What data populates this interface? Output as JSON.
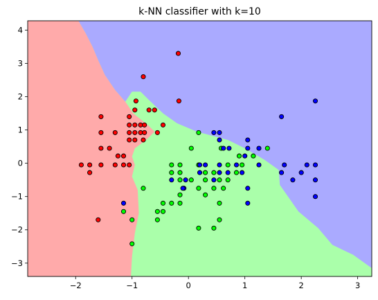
{
  "chart_data": {
    "type": "scatter",
    "title": "k-NN classifier with k=10",
    "xlabel": "",
    "ylabel": "",
    "xlim": [
      -2.85,
      3.25
    ],
    "ylim": [
      -3.4,
      4.28
    ],
    "xticks": [
      -2,
      -1,
      0,
      1,
      2,
      3
    ],
    "yticks": [
      -3,
      -2,
      -1,
      0,
      1,
      2,
      3,
      4
    ],
    "grid": false,
    "regions": [
      {
        "class": "red",
        "color": "#ffaaaa",
        "polygon": [
          [
            -2.85,
            4.28
          ],
          [
            -1.95,
            4.28
          ],
          [
            -1.82,
            3.9
          ],
          [
            -1.7,
            3.5
          ],
          [
            -1.6,
            3.1
          ],
          [
            -1.48,
            2.65
          ],
          [
            -1.3,
            2.2
          ],
          [
            -1.12,
            1.85
          ],
          [
            -0.98,
            1.5
          ],
          [
            -0.72,
            1.15
          ],
          [
            -0.6,
            0.95
          ],
          [
            -0.75,
            0.7
          ],
          [
            -0.95,
            0.45
          ],
          [
            -1.0,
            0.2
          ],
          [
            -0.95,
            -0.05
          ],
          [
            -1.0,
            -0.4
          ],
          [
            -0.9,
            -0.8
          ],
          [
            -0.88,
            -1.5
          ],
          [
            -0.95,
            -2.1
          ],
          [
            -1.0,
            -2.8
          ],
          [
            -1.02,
            -3.4
          ],
          [
            -2.85,
            -3.4
          ]
        ]
      },
      {
        "class": "blue",
        "color": "#aaaaff",
        "polygon": [
          [
            -1.95,
            4.28
          ],
          [
            3.25,
            4.28
          ],
          [
            3.25,
            -3.15
          ],
          [
            2.92,
            -2.75
          ],
          [
            2.55,
            -2.45
          ],
          [
            2.3,
            -1.95
          ],
          [
            1.95,
            -1.45
          ],
          [
            1.62,
            -0.65
          ],
          [
            1.6,
            -0.2
          ],
          [
            1.35,
            0.1
          ],
          [
            1.0,
            0.45
          ],
          [
            0.7,
            0.7
          ],
          [
            0.15,
            0.95
          ],
          [
            -0.2,
            1.2
          ],
          [
            -0.45,
            1.5
          ],
          [
            -0.7,
            1.9
          ],
          [
            -0.85,
            2.15
          ],
          [
            -1.0,
            2.15
          ],
          [
            -1.12,
            1.85
          ],
          [
            -1.3,
            2.2
          ],
          [
            -1.48,
            2.65
          ],
          [
            -1.6,
            3.1
          ],
          [
            -1.7,
            3.5
          ],
          [
            -1.82,
            3.9
          ]
        ]
      }
    ],
    "background_region": {
      "class": "green",
      "color": "#aaffaa"
    },
    "series": [
      {
        "color": "#ff0000",
        "points": [
          [
            -0.18,
            3.3
          ],
          [
            -0.8,
            2.6
          ],
          [
            -0.93,
            1.87
          ],
          [
            -0.17,
            1.87
          ],
          [
            -1.55,
            1.4
          ],
          [
            -1.05,
            1.4
          ],
          [
            -0.95,
            1.6
          ],
          [
            -0.7,
            1.6
          ],
          [
            -0.6,
            1.6
          ],
          [
            -1.55,
            0.92
          ],
          [
            -1.3,
            0.92
          ],
          [
            -1.05,
            1.15
          ],
          [
            -0.95,
            1.15
          ],
          [
            -0.85,
            1.15
          ],
          [
            -0.78,
            1.15
          ],
          [
            -1.05,
            0.92
          ],
          [
            -0.95,
            0.92
          ],
          [
            -0.85,
            0.92
          ],
          [
            -0.78,
            0.92
          ],
          [
            -0.55,
            0.92
          ],
          [
            -0.45,
            1.15
          ],
          [
            -1.05,
            0.7
          ],
          [
            -0.95,
            0.7
          ],
          [
            -0.8,
            0.7
          ],
          [
            -1.55,
            0.45
          ],
          [
            -1.4,
            0.45
          ],
          [
            -1.25,
            0.22
          ],
          [
            -1.15,
            0.22
          ],
          [
            -1.9,
            -0.05
          ],
          [
            -1.75,
            -0.05
          ],
          [
            -1.55,
            -0.05
          ],
          [
            -1.3,
            -0.05
          ],
          [
            -1.15,
            -0.05
          ],
          [
            -1.05,
            -0.05
          ],
          [
            -1.75,
            -0.28
          ],
          [
            -1.6,
            -1.7
          ]
        ]
      },
      {
        "color": "#00ff00",
        "points": [
          [
            0.18,
            0.92
          ],
          [
            0.05,
            0.45
          ],
          [
            0.58,
            0.45
          ],
          [
            1.4,
            0.45
          ],
          [
            0.9,
            0.22
          ],
          [
            1.15,
            0.22
          ],
          [
            -0.3,
            -0.05
          ],
          [
            -0.15,
            -0.05
          ],
          [
            0.18,
            -0.05
          ],
          [
            0.7,
            -0.05
          ],
          [
            0.95,
            -0.05
          ],
          [
            -0.3,
            -0.28
          ],
          [
            -0.15,
            -0.28
          ],
          [
            0.3,
            -0.28
          ],
          [
            0.45,
            -0.28
          ],
          [
            0.85,
            -0.28
          ],
          [
            -0.15,
            -0.5
          ],
          [
            0.05,
            -0.5
          ],
          [
            0.3,
            -0.5
          ],
          [
            0.55,
            -0.5
          ],
          [
            0.7,
            -0.5
          ],
          [
            -0.8,
            -0.75
          ],
          [
            0.18,
            -0.75
          ],
          [
            0.45,
            -0.75
          ],
          [
            0.62,
            -0.75
          ],
          [
            -0.15,
            -0.95
          ],
          [
            0.3,
            -0.95
          ],
          [
            -0.3,
            -1.2
          ],
          [
            -0.45,
            -1.2
          ],
          [
            -0.15,
            -1.2
          ],
          [
            0.55,
            -1.2
          ],
          [
            -0.45,
            -1.45
          ],
          [
            -0.55,
            -1.45
          ],
          [
            -1.15,
            -1.45
          ],
          [
            -0.55,
            -1.7
          ],
          [
            -1.0,
            -1.7
          ],
          [
            0.55,
            -1.7
          ],
          [
            0.18,
            -1.95
          ],
          [
            0.45,
            -1.95
          ],
          [
            -1.0,
            -2.42
          ]
        ]
      },
      {
        "color": "#0000ff",
        "points": [
          [
            2.25,
            1.87
          ],
          [
            1.65,
            1.4
          ],
          [
            0.45,
            0.92
          ],
          [
            0.55,
            0.92
          ],
          [
            0.55,
            0.7
          ],
          [
            1.05,
            0.7
          ],
          [
            0.62,
            0.45
          ],
          [
            0.72,
            0.45
          ],
          [
            1.05,
            0.45
          ],
          [
            1.25,
            0.45
          ],
          [
            1.0,
            0.22
          ],
          [
            0.2,
            -0.05
          ],
          [
            0.3,
            -0.05
          ],
          [
            0.55,
            -0.05
          ],
          [
            0.85,
            -0.05
          ],
          [
            1.25,
            -0.05
          ],
          [
            1.7,
            -0.05
          ],
          [
            2.1,
            -0.05
          ],
          [
            2.25,
            -0.05
          ],
          [
            -0.3,
            -0.5
          ],
          [
            -0.05,
            -0.5
          ],
          [
            0.2,
            -0.28
          ],
          [
            0.55,
            -0.28
          ],
          [
            0.7,
            -0.28
          ],
          [
            0.95,
            -0.28
          ],
          [
            1.65,
            -0.28
          ],
          [
            2.0,
            -0.28
          ],
          [
            0.45,
            -0.5
          ],
          [
            1.85,
            -0.5
          ],
          [
            2.25,
            -0.5
          ],
          [
            -0.08,
            -0.75
          ],
          [
            -0.1,
            -0.75
          ],
          [
            1.05,
            -0.75
          ],
          [
            2.25,
            -1.0
          ],
          [
            1.05,
            -1.2
          ],
          [
            -1.15,
            -1.2
          ]
        ]
      }
    ]
  }
}
